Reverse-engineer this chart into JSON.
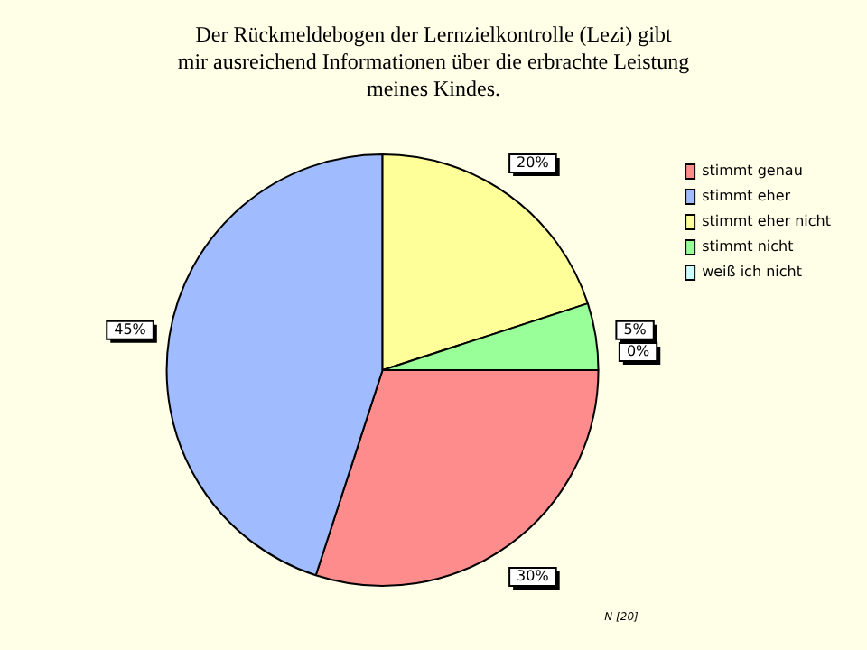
{
  "chart_data": {
    "type": "pie",
    "title": "Der Rückmeldebogen der Lernzielkontrolle (Lezi) gibt\nmir ausreichend Informationen über die erbrachte Leistung\nmeines Kindes.",
    "categories": [
      "stimmt genau",
      "stimmt eher",
      "stimmt eher nicht",
      "stimmt nicht",
      "weiß ich nicht"
    ],
    "values": [
      30,
      45,
      20,
      5,
      0
    ],
    "value_labels": [
      "30%",
      "45%",
      "20%",
      "5%",
      "0%"
    ],
    "colors": [
      "#ff8c8c",
      "#a0bcff",
      "#ffff99",
      "#99ff99",
      "#ccffff"
    ],
    "legend": "right",
    "annotations": [
      "N [20]"
    ]
  }
}
